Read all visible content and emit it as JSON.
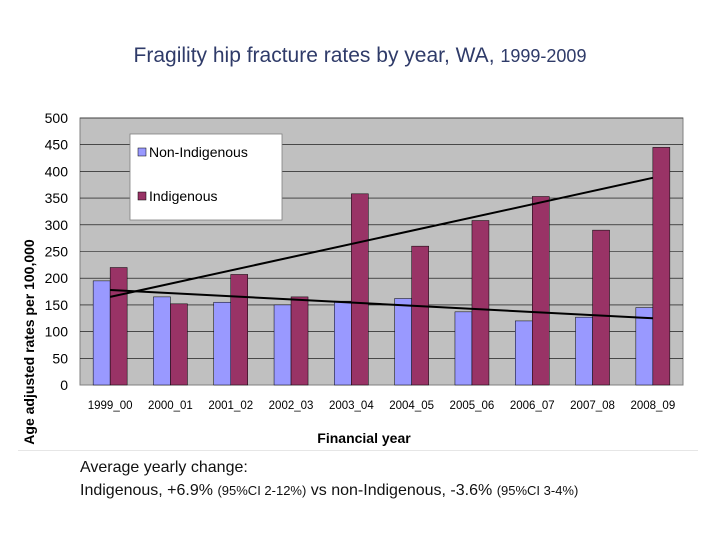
{
  "slide": {
    "title_main": "Fragility hip fracture rates by year, WA,",
    "title_years": "1999-2009",
    "note_line1": "Average yearly change:",
    "note_prefix": "Indigenous, +6.9%",
    "note_ci1": "(95%CI 2-12%)",
    "note_mid": "vs non-Indigenous, -3.6%",
    "note_ci2": "(95%CI 3-4%)"
  },
  "chart_data": {
    "type": "bar",
    "title": "",
    "xlabel": "Financial year",
    "ylabel": "Age adjusted rates per 100,000",
    "ylim": [
      0,
      500
    ],
    "yticks": [
      0,
      50,
      100,
      150,
      200,
      250,
      300,
      350,
      400,
      450,
      500
    ],
    "grid": true,
    "legend_position": "top-left",
    "categories": [
      "1999_00",
      "2000_01",
      "2001_02",
      "2002_03",
      "2003_04",
      "2004_05",
      "2005_06",
      "2006_07",
      "2007_08",
      "2008_09"
    ],
    "series": [
      {
        "name": "Non-Indigenous",
        "color": "#9999ff",
        "values": [
          195,
          165,
          155,
          150,
          157,
          162,
          137,
          120,
          127,
          145
        ]
      },
      {
        "name": "Indigenous",
        "color": "#993366",
        "values": [
          220,
          152,
          207,
          165,
          358,
          260,
          308,
          353,
          290,
          445
        ]
      }
    ],
    "trendlines": [
      {
        "name": "Indigenous trend",
        "from": 165,
        "to": 388
      },
      {
        "name": "Non-Indigenous trend",
        "from": 178,
        "to": 125
      }
    ],
    "colors": {
      "plot_bg": "#c0c0c0",
      "grid": "#000000",
      "trend": "#000000"
    }
  }
}
